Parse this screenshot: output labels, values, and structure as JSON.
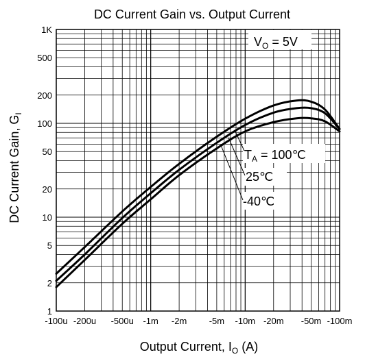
{
  "chart_data": {
    "type": "line",
    "title": "DC Current Gain vs. Output Current",
    "xlabel": {
      "main": "Output Current, I",
      "sub": "O",
      "tail": " (A)"
    },
    "ylabel": {
      "main": "DC Current Gain, G",
      "sub": "I"
    },
    "x_scale": "log",
    "y_scale": "log",
    "xlim": [
      0.0001,
      0.1
    ],
    "ylim": [
      1,
      1000
    ],
    "grid": true,
    "x_ticks": [
      {
        "value": 0.0001,
        "label": "-100u"
      },
      {
        "value": 0.0002,
        "label": "-200u"
      },
      {
        "value": 0.0005,
        "label": "-500u"
      },
      {
        "value": 0.001,
        "label": "-1m"
      },
      {
        "value": 0.002,
        "label": "-2m"
      },
      {
        "value": 0.005,
        "label": "-5m"
      },
      {
        "value": 0.01,
        "label": "-10m"
      },
      {
        "value": 0.02,
        "label": "-20m"
      },
      {
        "value": 0.05,
        "label": "-50m"
      },
      {
        "value": 0.1,
        "label": "-100m"
      }
    ],
    "y_ticks": [
      {
        "value": 1,
        "label": "1"
      },
      {
        "value": 2,
        "label": "2"
      },
      {
        "value": 5,
        "label": "5"
      },
      {
        "value": 10,
        "label": "10"
      },
      {
        "value": 20,
        "label": "20"
      },
      {
        "value": 50,
        "label": "50"
      },
      {
        "value": 100,
        "label": "100"
      },
      {
        "value": 200,
        "label": "200"
      },
      {
        "value": 500,
        "label": "500"
      },
      {
        "value": 1000,
        "label": "1K"
      }
    ],
    "annotations": {
      "condition": {
        "main": "V",
        "sub": "O",
        "tail": " = 5V"
      },
      "temp_prefix": {
        "main": "T",
        "sub": "A",
        "tail": " = "
      }
    },
    "series": [
      {
        "name": "100℃",
        "x": [
          0.0001,
          0.0002,
          0.0005,
          0.001,
          0.002,
          0.005,
          0.01,
          0.02,
          0.035,
          0.05,
          0.07,
          0.1
        ],
        "y": [
          2.5,
          4.8,
          11.5,
          21,
          37,
          72,
          112,
          155,
          175,
          170,
          140,
          87
        ]
      },
      {
        "name": "25℃",
        "x": [
          0.0001,
          0.0002,
          0.0005,
          0.001,
          0.002,
          0.005,
          0.01,
          0.02,
          0.035,
          0.05,
          0.07,
          0.1
        ],
        "y": [
          2.1,
          4.0,
          9.8,
          18,
          32,
          62,
          96,
          130,
          145,
          145,
          128,
          87
        ]
      },
      {
        "name": "-40℃",
        "x": [
          0.0001,
          0.0002,
          0.0005,
          0.001,
          0.002,
          0.005,
          0.01,
          0.02,
          0.035,
          0.05,
          0.07,
          0.1
        ],
        "y": [
          1.8,
          3.5,
          8.5,
          15.5,
          28,
          54,
          82,
          103,
          113,
          113,
          105,
          82
        ]
      }
    ]
  }
}
